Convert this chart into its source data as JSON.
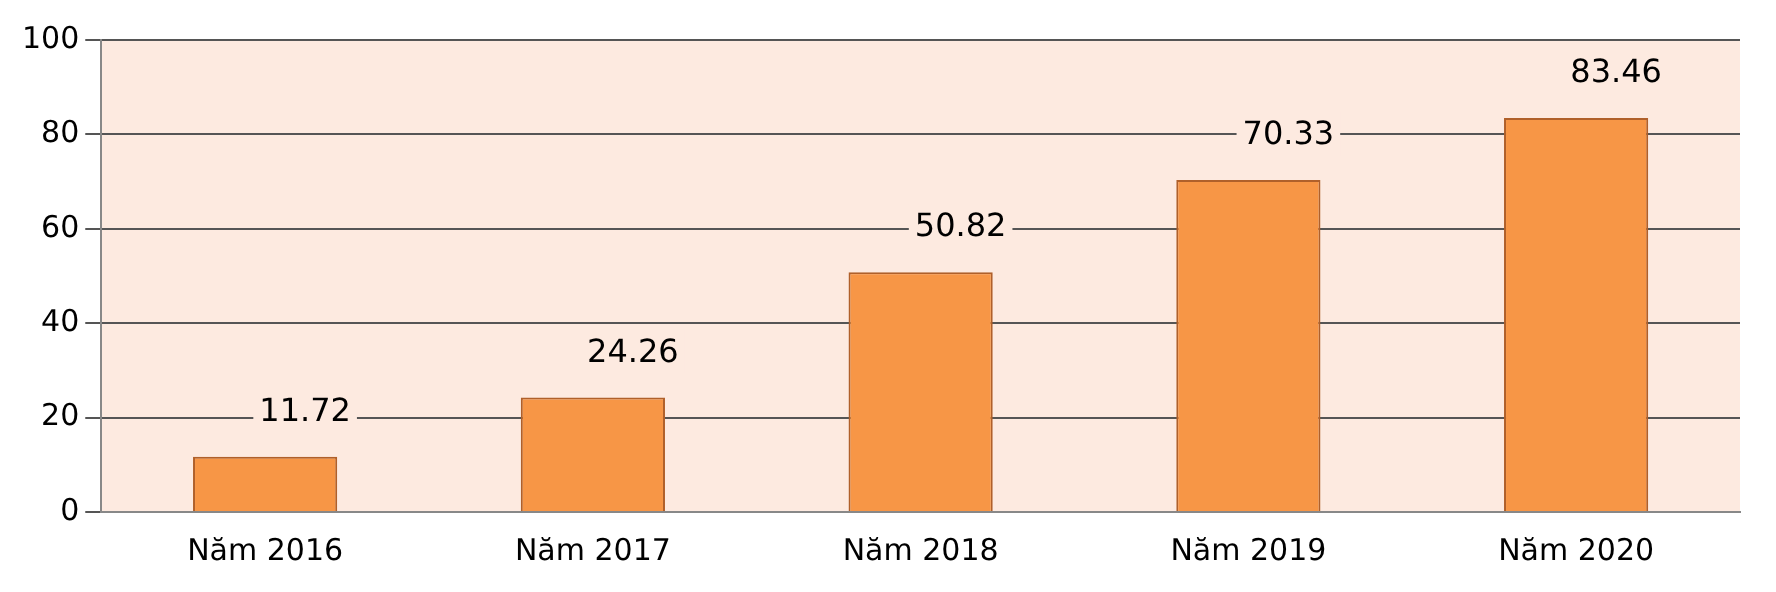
{
  "chart_data": {
    "type": "bar",
    "categories": [
      "Năm 2016",
      "Năm 2017",
      "Năm 2018",
      "Năm 2019",
      "Năm 2020"
    ],
    "values": [
      11.72,
      24.26,
      50.82,
      70.33,
      83.46
    ],
    "color": "#f79646",
    "ylim": [
      0,
      100
    ],
    "yticks": [
      0,
      20,
      40,
      60,
      80,
      100
    ],
    "grid": "y",
    "data_labels": true
  }
}
